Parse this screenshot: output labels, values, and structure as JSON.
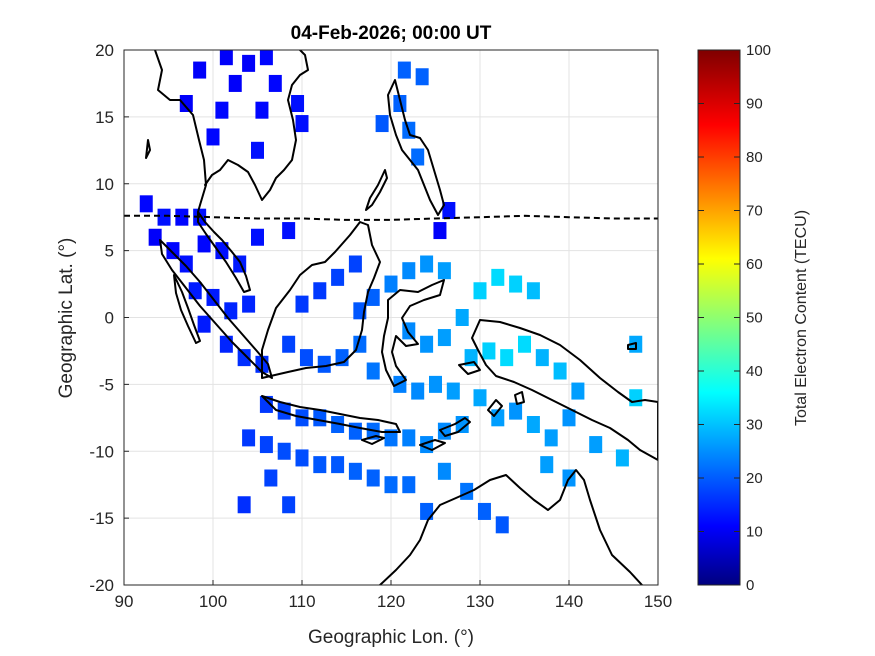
{
  "chart_data": {
    "type": "heatmap",
    "title": "04-Feb-2026; 00:00 UT",
    "xlabel": "Geographic Lon. (°)",
    "ylabel": "Geographic Lat. (°)",
    "xlim": [
      90,
      150
    ],
    "ylim": [
      -20,
      20
    ],
    "x_ticks": [
      "90",
      "100",
      "110",
      "120",
      "130",
      "140",
      "150"
    ],
    "y_ticks": [
      "20",
      "15",
      "10",
      "5",
      "0",
      "-5",
      "-10",
      "-15",
      "-20"
    ],
    "grid": true,
    "colorbar": {
      "label": "Total Electron Content (TECU)",
      "range": [
        0,
        100
      ],
      "ticks": [
        "0",
        "10",
        "20",
        "30",
        "40",
        "50",
        "60",
        "70",
        "80",
        "90",
        "100"
      ],
      "colormap": "jet"
    },
    "magnetic_equator_lat": [
      [
        90,
        7.6
      ],
      [
        95,
        7.6
      ],
      [
        100,
        7.5
      ],
      [
        105,
        7.4
      ],
      [
        110,
        7.4
      ],
      [
        115,
        7.3
      ],
      [
        120,
        7.3
      ],
      [
        125,
        7.4
      ],
      [
        130,
        7.5
      ],
      [
        135,
        7.6
      ],
      [
        140,
        7.5
      ],
      [
        145,
        7.4
      ],
      [
        150,
        7.4
      ]
    ],
    "tec_points": [
      {
        "lon": 92.5,
        "lat": 8.5,
        "tec": 13
      },
      {
        "lon": 94.5,
        "lat": 7.5,
        "tec": 14
      },
      {
        "lon": 96.5,
        "lat": 7.5,
        "tec": 13
      },
      {
        "lon": 98.5,
        "lat": 7.5,
        "tec": 14
      },
      {
        "lon": 93.5,
        "lat": 6.0,
        "tec": 12
      },
      {
        "lon": 95.5,
        "lat": 5.0,
        "tec": 13
      },
      {
        "lon": 97.0,
        "lat": 4.0,
        "tec": 14
      },
      {
        "lon": 99.0,
        "lat": 5.5,
        "tec": 13
      },
      {
        "lon": 101.0,
        "lat": 5.0,
        "tec": 14
      },
      {
        "lon": 103.0,
        "lat": 4.0,
        "tec": 15
      },
      {
        "lon": 98.0,
        "lat": 2.0,
        "tec": 15
      },
      {
        "lon": 100.0,
        "lat": 1.5,
        "tec": 15
      },
      {
        "lon": 102.0,
        "lat": 0.5,
        "tec": 16
      },
      {
        "lon": 104.0,
        "lat": 1.0,
        "tec": 16
      },
      {
        "lon": 99.0,
        "lat": -0.5,
        "tec": 15
      },
      {
        "lon": 101.5,
        "lat": -2.0,
        "tec": 16
      },
      {
        "lon": 103.5,
        "lat": -3.0,
        "tec": 17
      },
      {
        "lon": 105.5,
        "lat": -3.5,
        "tec": 17
      },
      {
        "lon": 106.0,
        "lat": -6.5,
        "tec": 18
      },
      {
        "lon": 108.0,
        "lat": -7.0,
        "tec": 19
      },
      {
        "lon": 110.0,
        "lat": -7.5,
        "tec": 20
      },
      {
        "lon": 112.0,
        "lat": -7.5,
        "tec": 21
      },
      {
        "lon": 114.0,
        "lat": -8.0,
        "tec": 22
      },
      {
        "lon": 116.0,
        "lat": -8.5,
        "tec": 22
      },
      {
        "lon": 118.0,
        "lat": -8.5,
        "tec": 23
      },
      {
        "lon": 120.0,
        "lat": -9.0,
        "tec": 24
      },
      {
        "lon": 122.0,
        "lat": -9.0,
        "tec": 25
      },
      {
        "lon": 124.0,
        "lat": -9.5,
        "tec": 26
      },
      {
        "lon": 126.0,
        "lat": -8.5,
        "tec": 26
      },
      {
        "lon": 128.0,
        "lat": -8.0,
        "tec": 27
      },
      {
        "lon": 104.0,
        "lat": -9.0,
        "tec": 18
      },
      {
        "lon": 106.0,
        "lat": -9.5,
        "tec": 19
      },
      {
        "lon": 108.0,
        "lat": -10.0,
        "tec": 20
      },
      {
        "lon": 110.0,
        "lat": -10.5,
        "tec": 20
      },
      {
        "lon": 112.0,
        "lat": -11.0,
        "tec": 21
      },
      {
        "lon": 114.0,
        "lat": -11.0,
        "tec": 21
      },
      {
        "lon": 116.0,
        "lat": -11.5,
        "tec": 22
      },
      {
        "lon": 118.0,
        "lat": -12.0,
        "tec": 22
      },
      {
        "lon": 120.0,
        "lat": -12.5,
        "tec": 23
      },
      {
        "lon": 122.0,
        "lat": -12.5,
        "tec": 23
      },
      {
        "lon": 108.5,
        "lat": -2.0,
        "tec": 19
      },
      {
        "lon": 110.5,
        "lat": -3.0,
        "tec": 20
      },
      {
        "lon": 112.5,
        "lat": -3.5,
        "tec": 21
      },
      {
        "lon": 114.5,
        "lat": -3.0,
        "tec": 22
      },
      {
        "lon": 116.5,
        "lat": -2.0,
        "tec": 23
      },
      {
        "lon": 118.0,
        "lat": -4.0,
        "tec": 24
      },
      {
        "lon": 110.0,
        "lat": 1.0,
        "tec": 18
      },
      {
        "lon": 112.0,
        "lat": 2.0,
        "tec": 18
      },
      {
        "lon": 114.0,
        "lat": 3.0,
        "tec": 19
      },
      {
        "lon": 116.0,
        "lat": 4.0,
        "tec": 19
      },
      {
        "lon": 116.5,
        "lat": 0.5,
        "tec": 21
      },
      {
        "lon": 118.0,
        "lat": 1.5,
        "tec": 22
      },
      {
        "lon": 120.0,
        "lat": 2.5,
        "tec": 25
      },
      {
        "lon": 122.0,
        "lat": 3.5,
        "tec": 26
      },
      {
        "lon": 124.0,
        "lat": 4.0,
        "tec": 27
      },
      {
        "lon": 126.0,
        "lat": 3.5,
        "tec": 28
      },
      {
        "lon": 122.0,
        "lat": -1.0,
        "tec": 26
      },
      {
        "lon": 124.0,
        "lat": -2.0,
        "tec": 27
      },
      {
        "lon": 126.0,
        "lat": -1.5,
        "tec": 28
      },
      {
        "lon": 128.0,
        "lat": 0.0,
        "tec": 29
      },
      {
        "lon": 121.0,
        "lat": -5.0,
        "tec": 25
      },
      {
        "lon": 123.0,
        "lat": -5.5,
        "tec": 26
      },
      {
        "lon": 125.0,
        "lat": -5.0,
        "tec": 27
      },
      {
        "lon": 127.0,
        "lat": -5.5,
        "tec": 28
      },
      {
        "lon": 129.0,
        "lat": -3.0,
        "tec": 30
      },
      {
        "lon": 131.0,
        "lat": -2.5,
        "tec": 33
      },
      {
        "lon": 133.0,
        "lat": -3.0,
        "tec": 34
      },
      {
        "lon": 135.0,
        "lat": -2.0,
        "tec": 34
      },
      {
        "lon": 130.0,
        "lat": 2.0,
        "tec": 33
      },
      {
        "lon": 132.0,
        "lat": 3.0,
        "tec": 34
      },
      {
        "lon": 134.0,
        "lat": 2.5,
        "tec": 33
      },
      {
        "lon": 136.0,
        "lat": 2.0,
        "tec": 31
      },
      {
        "lon": 137.0,
        "lat": -3.0,
        "tec": 30
      },
      {
        "lon": 139.0,
        "lat": -4.0,
        "tec": 31
      },
      {
        "lon": 130.0,
        "lat": -6.0,
        "tec": 29
      },
      {
        "lon": 132.0,
        "lat": -7.5,
        "tec": 28
      },
      {
        "lon": 134.0,
        "lat": -7.0,
        "tec": 27
      },
      {
        "lon": 136.0,
        "lat": -8.0,
        "tec": 29
      },
      {
        "lon": 138.0,
        "lat": -9.0,
        "tec": 28
      },
      {
        "lon": 140.0,
        "lat": -7.5,
        "tec": 27
      },
      {
        "lon": 141.0,
        "lat": -5.5,
        "tec": 28
      },
      {
        "lon": 137.5,
        "lat": -11.0,
        "tec": 28
      },
      {
        "lon": 140.0,
        "lat": -12.0,
        "tec": 27
      },
      {
        "lon": 143.0,
        "lat": -9.5,
        "tec": 28
      },
      {
        "lon": 146.0,
        "lat": -10.5,
        "tec": 30
      },
      {
        "lon": 147.5,
        "lat": -6.0,
        "tec": 33
      },
      {
        "lon": 147.5,
        "lat": -2.0,
        "tec": 29
      },
      {
        "lon": 126.0,
        "lat": -11.5,
        "tec": 26
      },
      {
        "lon": 128.5,
        "lat": -13.0,
        "tec": 24
      },
      {
        "lon": 130.5,
        "lat": -14.5,
        "tec": 22
      },
      {
        "lon": 132.5,
        "lat": -15.5,
        "tec": 21
      },
      {
        "lon": 124.0,
        "lat": -14.5,
        "tec": 22
      },
      {
        "lon": 103.5,
        "lat": -14.0,
        "tec": 17
      },
      {
        "lon": 106.5,
        "lat": -12.0,
        "tec": 19
      },
      {
        "lon": 108.5,
        "lat": -14.0,
        "tec": 19
      },
      {
        "lon": 101.5,
        "lat": 19.5,
        "tec": 12
      },
      {
        "lon": 104.0,
        "lat": 19.0,
        "tec": 12
      },
      {
        "lon": 106.0,
        "lat": 19.5,
        "tec": 13
      },
      {
        "lon": 98.5,
        "lat": 18.5,
        "tec": 12
      },
      {
        "lon": 102.5,
        "lat": 17.5,
        "tec": 12
      },
      {
        "lon": 107.0,
        "lat": 17.5,
        "tec": 13
      },
      {
        "lon": 97.0,
        "lat": 16.0,
        "tec": 12
      },
      {
        "lon": 101.0,
        "lat": 15.5,
        "tec": 13
      },
      {
        "lon": 105.5,
        "lat": 15.5,
        "tec": 13
      },
      {
        "lon": 109.5,
        "lat": 16.0,
        "tec": 14
      },
      {
        "lon": 110.0,
        "lat": 14.5,
        "tec": 14
      },
      {
        "lon": 100.0,
        "lat": 13.5,
        "tec": 13
      },
      {
        "lon": 105.0,
        "lat": 12.5,
        "tec": 14
      },
      {
        "lon": 121.5,
        "lat": 18.5,
        "tec": 22
      },
      {
        "lon": 123.5,
        "lat": 18.0,
        "tec": 22
      },
      {
        "lon": 121.0,
        "lat": 16.0,
        "tec": 22
      },
      {
        "lon": 119.0,
        "lat": 14.5,
        "tec": 21
      },
      {
        "lon": 122.0,
        "lat": 14.0,
        "tec": 23
      },
      {
        "lon": 123.0,
        "lat": 12.0,
        "tec": 23
      },
      {
        "lon": 108.5,
        "lat": 6.5,
        "tec": 14
      },
      {
        "lon": 105.0,
        "lat": 6.0,
        "tec": 14
      },
      {
        "lon": 125.5,
        "lat": 6.5,
        "tec": 12
      },
      {
        "lon": 126.5,
        "lat": 8.0,
        "tec": 14
      }
    ]
  }
}
